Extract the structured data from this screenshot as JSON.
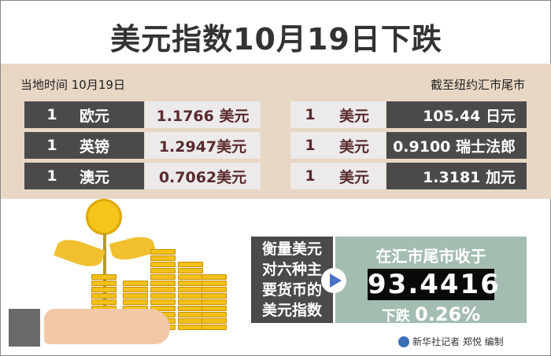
{
  "title": "美元指数10月19日下跌",
  "local_time": "当地时间 10月19日",
  "as_of": "截至纽约汇市尾市",
  "left_rows": [
    {
      "amount": "1",
      "currency": "欧元",
      "value": "1.1766 美元"
    },
    {
      "amount": "1",
      "currency": "英镑",
      "value": "1.2947美元"
    },
    {
      "amount": "1",
      "currency": "澳元",
      "value": "0.7062美元"
    }
  ],
  "right_rows": [
    {
      "amount": "1",
      "currency": "美元",
      "value": "105.44 日元"
    },
    {
      "amount": "1",
      "currency": "美元",
      "value": "0.9100 瑞士法郎"
    },
    {
      "amount": "1",
      "currency": "美元",
      "value": "1.3181 加元"
    }
  ],
  "index_box": {
    "lines": [
      "衡量美元",
      "对六种主",
      "要货币的",
      "美元指数"
    ]
  },
  "result": {
    "label": "在汇市尾市收于",
    "value": "93.4416",
    "drop_label": "下跌",
    "drop_value": "0.26%"
  },
  "credit": "新华社记者 郑悦 编制",
  "colors": {
    "band": "#e8d7c4",
    "dark": "#4a4a4a",
    "value_text": "#5a2a2e",
    "result_bg": "#a4bdb1",
    "coin": "#f2c118"
  }
}
